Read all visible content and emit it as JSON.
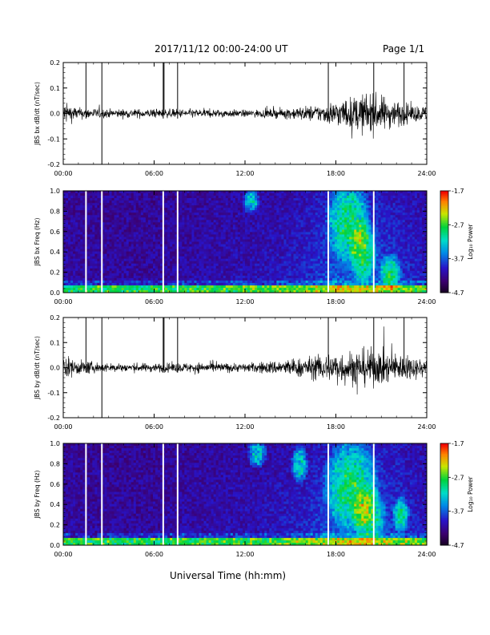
{
  "header": {
    "title": "2017/11/12  00:00-24:00 UT",
    "page": "Page 1/1"
  },
  "x_axis_label": "Universal Time (hh:mm)",
  "chart_data": [
    {
      "type": "line",
      "ylabel": "JBS bx dB/dt (nT/sec)",
      "xlim": [
        0,
        24
      ],
      "ylim": [
        -0.2,
        0.2
      ],
      "x_ticks": [
        "00:00",
        "06:00",
        "12:00",
        "18:00",
        "24:00"
      ],
      "y_ticks": [
        "0.2",
        "0.1",
        "0.0",
        "-0.1",
        "-0.2"
      ],
      "gap_markers_hours": [
        1.5,
        2.55,
        6.6,
        7.55,
        17.5,
        20.5,
        22.5
      ],
      "amplitude_envelope": {
        "hours": [
          0,
          1,
          3,
          6,
          9,
          12,
          14,
          16,
          17,
          18,
          19,
          20,
          21,
          22,
          23,
          24
        ],
        "amplitude": [
          0.04,
          0.02,
          0.015,
          0.015,
          0.015,
          0.012,
          0.015,
          0.025,
          0.03,
          0.045,
          0.055,
          0.07,
          0.06,
          0.045,
          0.03,
          0.025
        ]
      },
      "color": "#000000"
    },
    {
      "type": "heatmap",
      "ylabel": "JBS bx Freq (Hz)",
      "xlim": [
        0,
        24
      ],
      "ylim": [
        0.0,
        1.0
      ],
      "x_ticks": [
        "00:00",
        "06:00",
        "12:00",
        "18:00",
        "24:00"
      ],
      "y_ticks": [
        "1.0",
        "0.8",
        "0.6",
        "0.4",
        "0.2",
        "0.0"
      ],
      "gap_markers_hours": [
        1.5,
        2.55,
        6.6,
        7.55,
        17.5,
        20.5
      ],
      "colorbar": {
        "label": "Log₁₀ Power",
        "ticks": [
          "-1.7",
          "-2.7",
          "-3.7",
          "-4.7"
        ],
        "range": [
          -4.7,
          -1.7
        ]
      }
    },
    {
      "type": "line",
      "ylabel": "JBS by dB/dt (nT/sec)",
      "xlim": [
        0,
        24
      ],
      "ylim": [
        -0.2,
        0.2
      ],
      "x_ticks": [
        "00:00",
        "06:00",
        "12:00",
        "18:00",
        "24:00"
      ],
      "y_ticks": [
        "0.2",
        "0.1",
        "0.0",
        "-0.1",
        "-0.2"
      ],
      "gap_markers_hours": [
        1.5,
        2.55,
        6.6,
        7.55,
        17.5,
        20.5,
        22.5
      ],
      "amplitude_envelope": {
        "hours": [
          0,
          1,
          3,
          6,
          9,
          12,
          14,
          16,
          17,
          18,
          19,
          20,
          21,
          22,
          23,
          24
        ],
        "amplitude": [
          0.04,
          0.025,
          0.015,
          0.015,
          0.018,
          0.015,
          0.025,
          0.035,
          0.045,
          0.055,
          0.06,
          0.065,
          0.06,
          0.05,
          0.04,
          0.03
        ]
      },
      "color": "#000000"
    },
    {
      "type": "heatmap",
      "ylabel": "JBS by Freq (Hz)",
      "xlim": [
        0,
        24
      ],
      "ylim": [
        0.0,
        1.0
      ],
      "x_ticks": [
        "00:00",
        "06:00",
        "12:00",
        "18:00",
        "24:00"
      ],
      "y_ticks": [
        "1.0",
        "0.8",
        "0.6",
        "0.4",
        "0.2",
        "0.0"
      ],
      "gap_markers_hours": [
        1.5,
        2.55,
        6.6,
        7.55,
        17.5,
        20.5
      ],
      "colorbar": {
        "label": "Log₁₀ Power",
        "ticks": [
          "-1.7",
          "-2.7",
          "-3.7",
          "-4.7"
        ],
        "range": [
          -4.7,
          -1.7
        ]
      }
    }
  ]
}
